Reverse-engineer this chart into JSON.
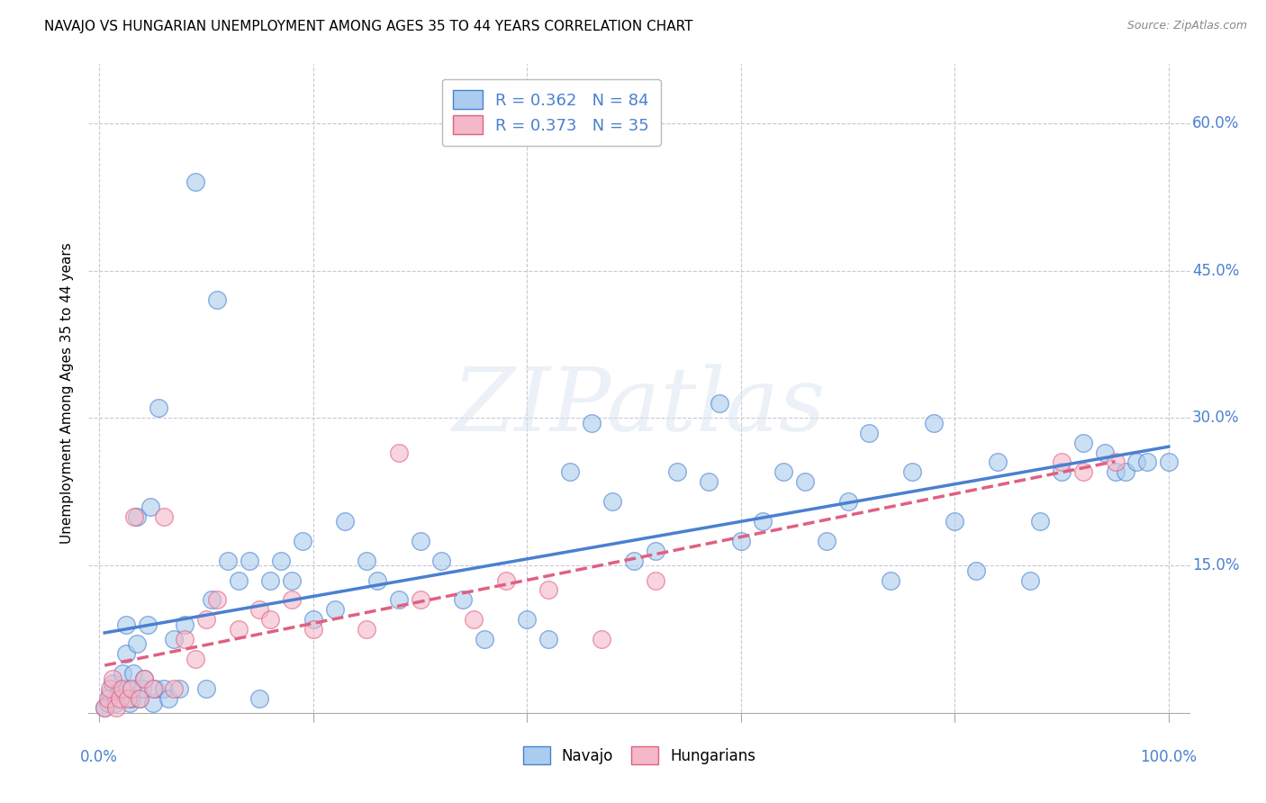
{
  "title": "NAVAJO VS HUNGARIAN UNEMPLOYMENT AMONG AGES 35 TO 44 YEARS CORRELATION CHART",
  "source": "Source: ZipAtlas.com",
  "xlabel": "",
  "ylabel": "Unemployment Among Ages 35 to 44 years",
  "xlim": [
    -0.01,
    1.02
  ],
  "ylim": [
    -0.01,
    0.66
  ],
  "xticks": [
    0.0,
    0.2,
    0.4,
    0.6,
    0.8,
    1.0
  ],
  "xticklabels_left": "0.0%",
  "xticklabels_right": "100.0%",
  "yticks": [
    0.0,
    0.15,
    0.3,
    0.45,
    0.6
  ],
  "yticklabels": [
    "",
    "15.0%",
    "30.0%",
    "45.0%",
    "60.0%"
  ],
  "navajo_color": "#aaccee",
  "hungarian_color": "#f4b8c8",
  "navajo_R": 0.362,
  "navajo_N": 84,
  "hungarian_R": 0.373,
  "hungarian_N": 35,
  "legend_label_navajo": "Navajo",
  "legend_label_hungarian": "Hungarians",
  "navajo_x": [
    0.005,
    0.008,
    0.01,
    0.012,
    0.015,
    0.018,
    0.02,
    0.022,
    0.025,
    0.025,
    0.028,
    0.03,
    0.03,
    0.032,
    0.035,
    0.035,
    0.038,
    0.04,
    0.042,
    0.045,
    0.048,
    0.05,
    0.052,
    0.055,
    0.06,
    0.065,
    0.07,
    0.075,
    0.08,
    0.09,
    0.1,
    0.105,
    0.11,
    0.12,
    0.13,
    0.14,
    0.15,
    0.16,
    0.17,
    0.18,
    0.19,
    0.2,
    0.22,
    0.23,
    0.25,
    0.26,
    0.28,
    0.3,
    0.32,
    0.34,
    0.36,
    0.4,
    0.42,
    0.44,
    0.46,
    0.48,
    0.5,
    0.52,
    0.54,
    0.57,
    0.58,
    0.6,
    0.62,
    0.64,
    0.66,
    0.68,
    0.7,
    0.72,
    0.74,
    0.76,
    0.78,
    0.8,
    0.82,
    0.84,
    0.87,
    0.88,
    0.9,
    0.92,
    0.94,
    0.95,
    0.96,
    0.97,
    0.98,
    1.0
  ],
  "navajo_y": [
    0.005,
    0.01,
    0.02,
    0.03,
    0.01,
    0.02,
    0.025,
    0.04,
    0.06,
    0.09,
    0.01,
    0.015,
    0.025,
    0.04,
    0.07,
    0.2,
    0.015,
    0.025,
    0.035,
    0.09,
    0.21,
    0.01,
    0.025,
    0.31,
    0.025,
    0.015,
    0.075,
    0.025,
    0.09,
    0.54,
    0.025,
    0.115,
    0.42,
    0.155,
    0.135,
    0.155,
    0.015,
    0.135,
    0.155,
    0.135,
    0.175,
    0.095,
    0.105,
    0.195,
    0.155,
    0.135,
    0.115,
    0.175,
    0.155,
    0.115,
    0.075,
    0.095,
    0.075,
    0.245,
    0.295,
    0.215,
    0.155,
    0.165,
    0.245,
    0.235,
    0.315,
    0.175,
    0.195,
    0.245,
    0.235,
    0.175,
    0.215,
    0.285,
    0.135,
    0.245,
    0.295,
    0.195,
    0.145,
    0.255,
    0.135,
    0.195,
    0.245,
    0.275,
    0.265,
    0.245,
    0.245,
    0.255,
    0.255,
    0.255
  ],
  "hungarian_x": [
    0.005,
    0.008,
    0.01,
    0.012,
    0.016,
    0.019,
    0.022,
    0.027,
    0.03,
    0.033,
    0.038,
    0.042,
    0.05,
    0.06,
    0.07,
    0.08,
    0.09,
    0.1,
    0.11,
    0.13,
    0.15,
    0.16,
    0.18,
    0.2,
    0.25,
    0.28,
    0.3,
    0.35,
    0.38,
    0.42,
    0.47,
    0.52,
    0.9,
    0.92,
    0.95
  ],
  "hungarian_y": [
    0.005,
    0.015,
    0.025,
    0.035,
    0.005,
    0.015,
    0.025,
    0.015,
    0.025,
    0.2,
    0.015,
    0.035,
    0.025,
    0.2,
    0.025,
    0.075,
    0.055,
    0.095,
    0.115,
    0.085,
    0.105,
    0.095,
    0.115,
    0.085,
    0.085,
    0.265,
    0.115,
    0.095,
    0.135,
    0.125,
    0.075,
    0.135,
    0.255,
    0.245,
    0.255
  ],
  "navajo_line_color": "#4a80d0",
  "hungarian_line_color": "#e06080",
  "watermark": "ZIPatlas",
  "background_color": "#ffffff",
  "grid_color": "#c8c8d8",
  "tick_label_color": "#4a80d0"
}
